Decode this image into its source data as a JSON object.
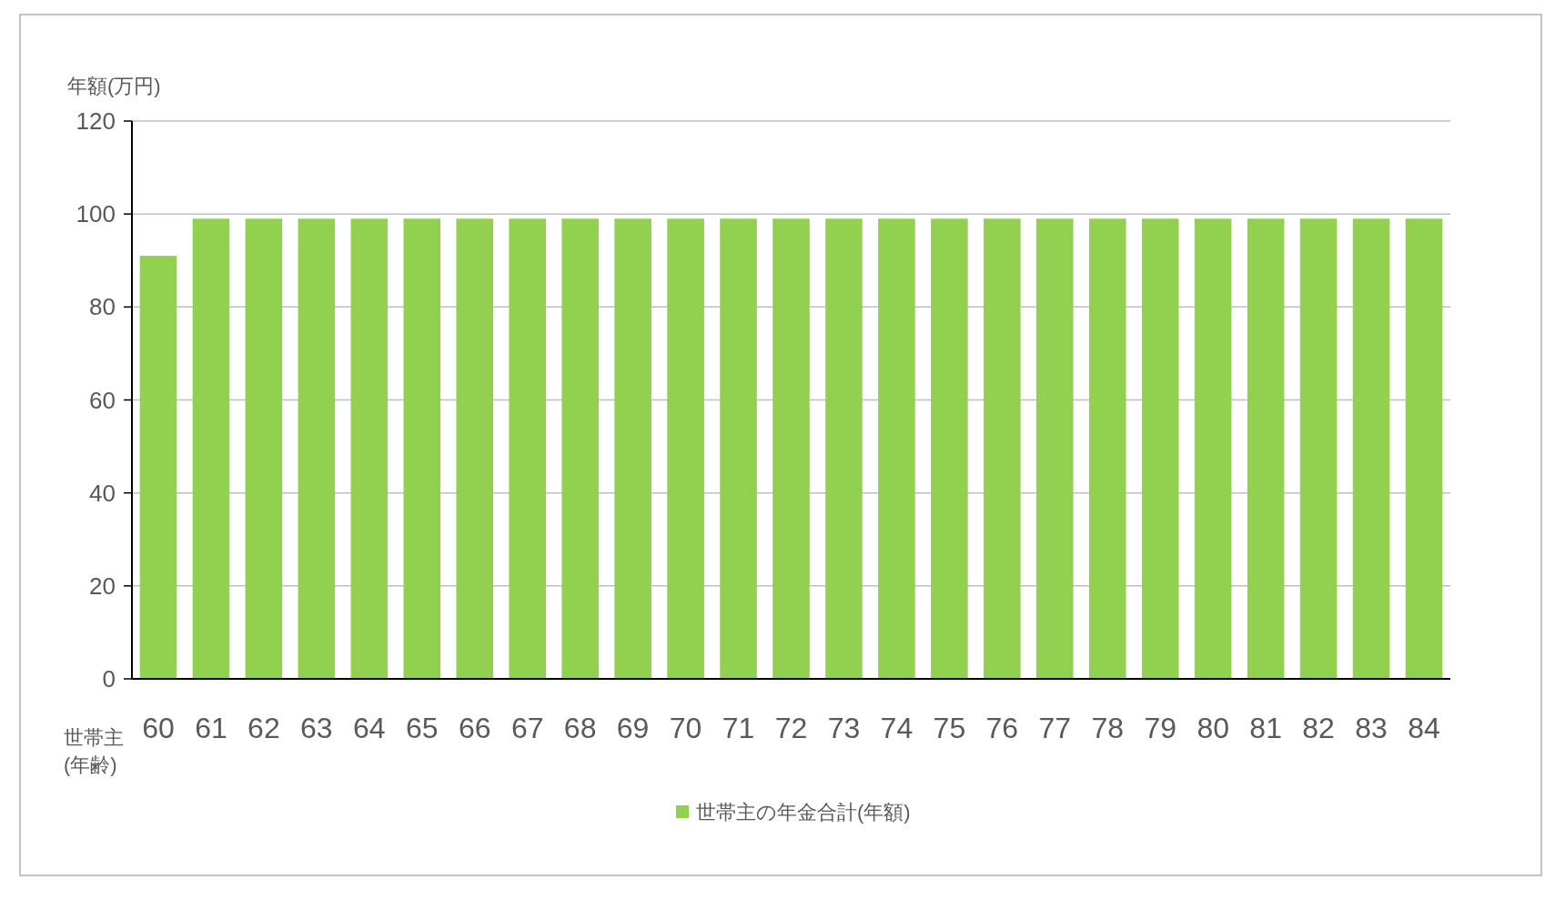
{
  "chart_data": {
    "type": "bar",
    "xlabel": "世帯主\n(年齢)",
    "ylabel": "年額(万円)",
    "categories": [
      "60",
      "61",
      "62",
      "63",
      "64",
      "65",
      "66",
      "67",
      "68",
      "69",
      "70",
      "71",
      "72",
      "73",
      "74",
      "75",
      "76",
      "77",
      "78",
      "79",
      "80",
      "81",
      "82",
      "83",
      "84"
    ],
    "series": [
      {
        "name": "世帯主の年金合計(年額)",
        "color": "#92d050",
        "values": [
          91,
          99,
          99,
          99,
          99,
          99,
          99,
          99,
          99,
          99,
          99,
          99,
          99,
          99,
          99,
          99,
          99,
          99,
          99,
          99,
          99,
          99,
          99,
          99,
          99
        ]
      }
    ],
    "ylim": [
      0,
      120
    ],
    "yticks": [
      0,
      20,
      40,
      60,
      80,
      100,
      120
    ],
    "grid": "y",
    "legend": "bottom"
  }
}
